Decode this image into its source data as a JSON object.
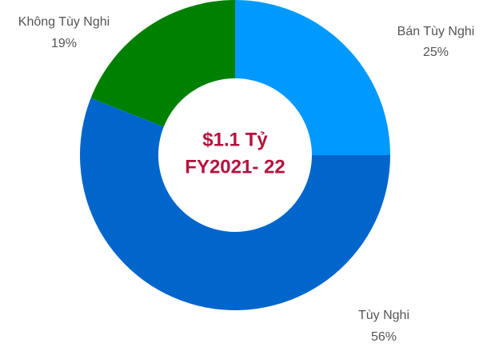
{
  "chart_data": {
    "type": "pie",
    "center_text": [
      "$1.1 Tỷ",
      "FY2021- 22"
    ],
    "center_color": "#b5123e",
    "categories": [
      "Bán Tùy Nghi",
      "Tùy Nghi",
      "Không Tùy Nghi"
    ],
    "values": [
      25,
      56,
      19
    ],
    "value_labels": [
      "25%",
      "56%",
      "19%"
    ],
    "colors": [
      "#0099ff",
      "#0066cc",
      "#008000"
    ]
  }
}
